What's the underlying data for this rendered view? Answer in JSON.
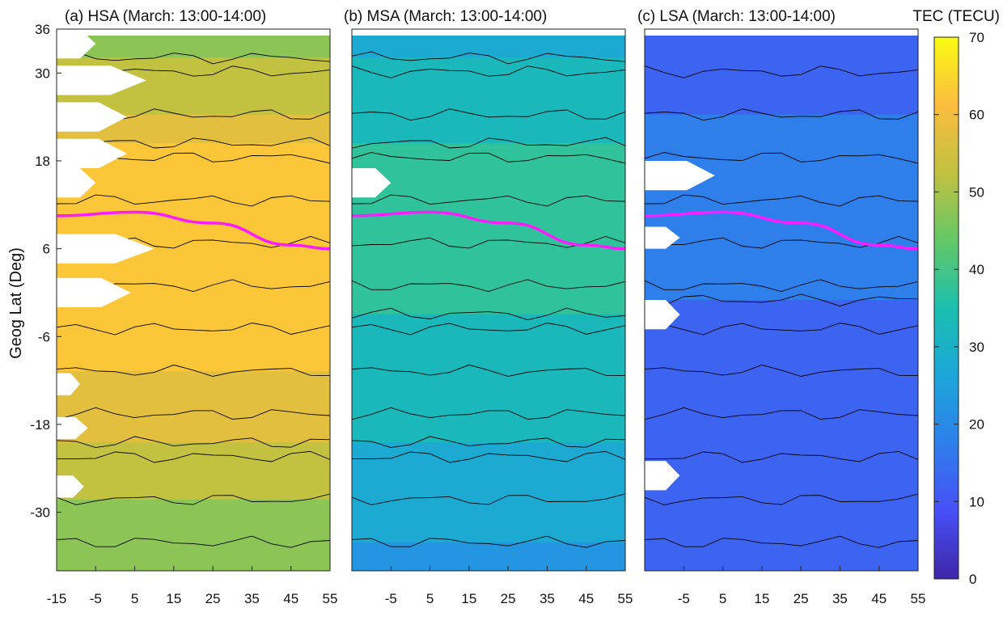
{
  "chart_data": [
    {
      "id": "a",
      "type": "heatmap",
      "title": "(a) HSA (March: 13:00-14:00)",
      "ylabel": "Geog Lat (Deg)",
      "x_ticks": [
        "-15",
        "-5",
        "5",
        "15",
        "25",
        "35",
        "45",
        "55"
      ],
      "y_ticks": [
        "36",
        "30",
        "18",
        "6",
        "-6",
        "-18",
        "-30"
      ],
      "xlim": [
        -15,
        55
      ],
      "ylim": [
        -38,
        36
      ],
      "base_tec": [
        48,
        49,
        50,
        51,
        52,
        54,
        56,
        58,
        60,
        62,
        63,
        63,
        64,
        63,
        63,
        62,
        61,
        62,
        63,
        62,
        61,
        61,
        60,
        60,
        59,
        58,
        57,
        56,
        55,
        54,
        53,
        51,
        50,
        49,
        48,
        47,
        46,
        45
      ],
      "magnetic_equator": {
        "lon": [
          -15,
          5,
          25,
          45,
          55
        ],
        "lat": [
          10.5,
          11,
          9.5,
          6.5,
          6
        ]
      },
      "blanks": [
        {
          "y_top": 36,
          "y_bottom": 32,
          "tip_lon": -5
        },
        {
          "y_top": 31,
          "y_bottom": 27,
          "tip_lon": 8
        },
        {
          "y_top": 26,
          "y_bottom": 22,
          "tip_lon": 3
        },
        {
          "y_top": 21,
          "y_bottom": 17,
          "tip_lon": 3
        },
        {
          "y_top": 17,
          "y_bottom": 13,
          "tip_lon": -5
        },
        {
          "y_top": 8,
          "y_bottom": 4,
          "tip_lon": 10
        },
        {
          "y_top": 2,
          "y_bottom": -2,
          "tip_lon": 4
        },
        {
          "y_top": -11,
          "y_bottom": -14,
          "tip_lon": -9
        },
        {
          "y_top": -17,
          "y_bottom": -20,
          "tip_lon": -7
        },
        {
          "y_top": -25,
          "y_bottom": -28,
          "tip_lon": -8
        }
      ]
    },
    {
      "id": "b",
      "type": "heatmap",
      "title": "(b) MSA (March: 13:00-14:00)",
      "x_ticks": [
        "-5",
        "5",
        "15",
        "25",
        "35",
        "45",
        "55"
      ],
      "xlim": [
        -15,
        55
      ],
      "ylim": [
        -38,
        36
      ],
      "base_tec": [
        29,
        29,
        30,
        30,
        31,
        32,
        33,
        34,
        36,
        37,
        38,
        38,
        38,
        37,
        37,
        36,
        36,
        37,
        36,
        35,
        34,
        33,
        33,
        34,
        33,
        32,
        31,
        30,
        30,
        29,
        28,
        27,
        26,
        26,
        25,
        25,
        24,
        24
      ],
      "magnetic_equator": {
        "lon": [
          -15,
          5,
          25,
          45,
          55
        ],
        "lat": [
          10.5,
          11,
          9.5,
          6.5,
          6
        ]
      },
      "blanks": [
        {
          "y_top": 17,
          "y_bottom": 13,
          "tip_lon": -5
        }
      ]
    },
    {
      "id": "c",
      "type": "heatmap",
      "title": "(c) LSA (March: 13:00-14:00)",
      "x_ticks": [
        "-5",
        "5",
        "15",
        "25",
        "35",
        "45",
        "55"
      ],
      "xlim": [
        -15,
        55
      ],
      "ylim": [
        -38,
        36
      ],
      "base_tec": [
        12,
        12,
        13,
        13,
        14,
        14,
        15,
        15,
        16,
        16,
        16,
        16,
        16,
        16,
        15,
        15,
        15,
        15,
        15,
        14,
        14,
        14,
        14,
        13,
        13,
        13,
        13,
        12,
        12,
        12,
        12,
        11,
        11,
        11,
        11,
        11,
        10,
        10
      ],
      "magnetic_equator": {
        "lon": [
          -15,
          5,
          25,
          45,
          55
        ],
        "lat": [
          10.5,
          11,
          9.5,
          6.5,
          6
        ]
      },
      "blanks": [
        {
          "y_top": 18,
          "y_bottom": 14,
          "tip_lon": 3
        },
        {
          "y_top": 9,
          "y_bottom": 6,
          "tip_lon": -6
        },
        {
          "y_top": -1,
          "y_bottom": -5,
          "tip_lon": -6
        },
        {
          "y_top": -23,
          "y_bottom": -27,
          "tip_lon": -6
        }
      ]
    }
  ],
  "colorbar": {
    "title": "TEC (TECU)",
    "ticks": [
      "0",
      "10",
      "20",
      "30",
      "40",
      "50",
      "60",
      "70"
    ],
    "min": 0,
    "max": 70
  },
  "colors": {
    "equator_line": "#ff1aff",
    "contour": "#000000"
  }
}
